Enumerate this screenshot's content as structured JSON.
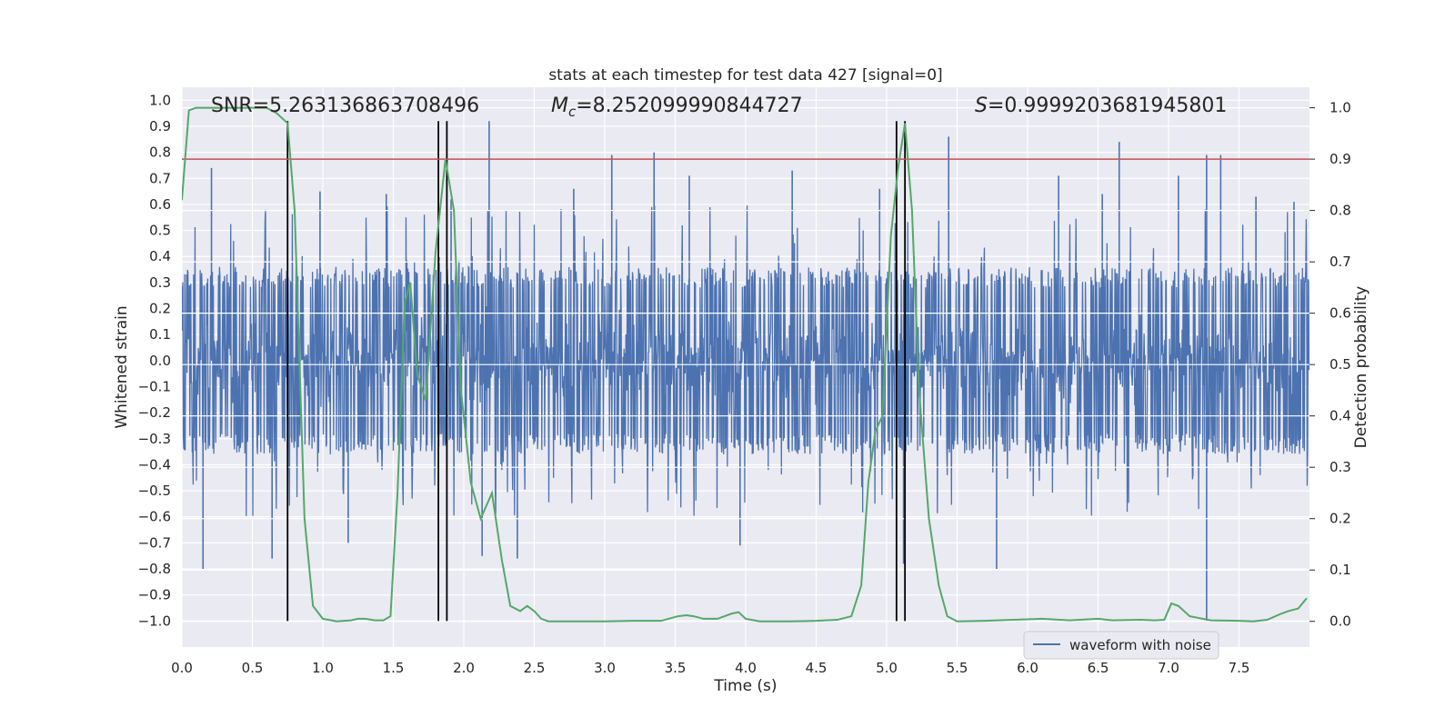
{
  "chart_data": {
    "type": "line",
    "title": "stats at each timestep for test data 427 [signal=0]",
    "xlabel": "Time (s)",
    "ylabel_left": "Whitened strain",
    "ylabel_right": "Detection probability",
    "xlim": [
      0,
      8
    ],
    "ylim_left": [
      -1.1,
      1.05
    ],
    "ylim_right": [
      -0.05,
      1.04
    ],
    "grid": true,
    "x_ticks": [
      0.0,
      0.5,
      1.0,
      1.5,
      2.0,
      2.5,
      3.0,
      3.5,
      4.0,
      4.5,
      5.0,
      5.5,
      6.0,
      6.5,
      7.0,
      7.5
    ],
    "x_tick_labels": [
      "0.0",
      "0.5",
      "1.0",
      "1.5",
      "2.0",
      "2.5",
      "3.0",
      "3.5",
      "4.0",
      "4.5",
      "5.0",
      "5.5",
      "6.0",
      "6.5",
      "7.0",
      "7.5"
    ],
    "y_left_ticks": [
      1.0,
      0.9,
      0.8,
      0.7,
      0.6,
      0.5,
      0.4,
      0.3,
      0.2,
      0.1,
      0.0,
      -0.1,
      -0.2,
      -0.3,
      -0.4,
      -0.5,
      -0.6,
      -0.7,
      -0.8,
      -0.9,
      -1.0
    ],
    "y_left_tick_labels": [
      "1.0",
      "0.9",
      "0.8",
      "0.7",
      "0.6",
      "0.5",
      "0.4",
      "0.3",
      "0.2",
      "0.1",
      "0.0",
      "−0.1",
      "−0.2",
      "−0.3",
      "−0.4",
      "−0.5",
      "−0.6",
      "−0.7",
      "−0.8",
      "−0.9",
      "−1.0"
    ],
    "y_right_ticks": [
      1.0,
      0.9,
      0.8,
      0.7,
      0.6,
      0.5,
      0.4,
      0.3,
      0.2,
      0.1,
      0.0
    ],
    "y_right_tick_labels": [
      "1.0",
      "0.9",
      "0.8",
      "0.7",
      "0.6",
      "0.5",
      "0.4",
      "0.3",
      "0.2",
      "0.1",
      "0.0"
    ],
    "annotations": {
      "snr": "SNR=5.263136863708496",
      "mc_symbol": "M",
      "mc_subscript": "c",
      "mc_value": "=8.252099990844727",
      "s_symbol": "S",
      "s_value": "=0.9999203681945801"
    },
    "threshold": {
      "value": 0.9,
      "axis": "right",
      "color": "#c44e52"
    },
    "vertical_markers": {
      "x": [
        0.75,
        1.82,
        1.88,
        5.07,
        5.13
      ],
      "y_range_left": [
        -1.0,
        0.92
      ],
      "color": "#000000"
    },
    "series": [
      {
        "name": "waveform with noise",
        "axis": "left",
        "color": "#4c72b0",
        "style": "dense noise, amplitude mostly within ±0.4",
        "spikes": [
          {
            "x": 0.15,
            "y": -0.8
          },
          {
            "x": 0.21,
            "y": 0.74
          },
          {
            "x": 0.64,
            "y": -0.76
          },
          {
            "x": 0.98,
            "y": 0.65
          },
          {
            "x": 1.18,
            "y": -0.7
          },
          {
            "x": 1.45,
            "y": 0.64
          },
          {
            "x": 1.91,
            "y": 0.62
          },
          {
            "x": 2.13,
            "y": -0.75
          },
          {
            "x": 2.18,
            "y": 0.92
          },
          {
            "x": 2.38,
            "y": -0.76
          },
          {
            "x": 2.78,
            "y": 0.66
          },
          {
            "x": 3.05,
            "y": 0.79
          },
          {
            "x": 3.35,
            "y": 0.8
          },
          {
            "x": 3.6,
            "y": 0.71
          },
          {
            "x": 3.96,
            "y": -0.71
          },
          {
            "x": 4.33,
            "y": 0.73
          },
          {
            "x": 4.95,
            "y": 0.66
          },
          {
            "x": 5.12,
            "y": -0.78
          },
          {
            "x": 5.44,
            "y": 0.86
          },
          {
            "x": 5.78,
            "y": -0.8
          },
          {
            "x": 6.22,
            "y": 0.71
          },
          {
            "x": 6.53,
            "y": 0.64
          },
          {
            "x": 6.65,
            "y": 0.84
          },
          {
            "x": 7.07,
            "y": 0.71
          },
          {
            "x": 7.27,
            "y": 0.79
          },
          {
            "x": 7.27,
            "y": -1.0
          },
          {
            "x": 7.37,
            "y": 0.79
          },
          {
            "x": 7.62,
            "y": 0.63
          },
          {
            "x": 7.89,
            "y": 0.61
          }
        ]
      },
      {
        "name": "",
        "axis": "right",
        "color": "#55a868",
        "x": [
          0.0,
          0.05,
          0.1,
          0.2,
          0.3,
          0.4,
          0.5,
          0.6,
          0.67,
          0.75,
          0.8,
          0.87,
          0.93,
          1.0,
          1.1,
          1.2,
          1.25,
          1.3,
          1.37,
          1.43,
          1.48,
          1.53,
          1.58,
          1.62,
          1.67,
          1.73,
          1.8,
          1.87,
          1.93,
          1.98,
          2.05,
          2.12,
          2.2,
          2.27,
          2.33,
          2.4,
          2.45,
          2.5,
          2.55,
          2.6,
          2.7,
          3.0,
          3.2,
          3.4,
          3.52,
          3.58,
          3.63,
          3.7,
          3.8,
          3.9,
          3.95,
          4.0,
          4.1,
          4.3,
          4.5,
          4.65,
          4.75,
          4.82,
          4.87,
          4.92,
          4.97,
          5.03,
          5.08,
          5.13,
          5.18,
          5.23,
          5.3,
          5.37,
          5.43,
          5.5,
          5.7,
          5.9,
          6.1,
          6.3,
          6.5,
          6.6,
          6.8,
          6.9,
          6.97,
          7.02,
          7.07,
          7.15,
          7.3,
          7.5,
          7.6,
          7.7,
          7.8,
          7.85,
          7.92,
          7.98
        ],
        "y": [
          0.82,
          0.995,
          1.0,
          1.0,
          1.0,
          1.0,
          1.0,
          1.0,
          0.99,
          0.97,
          0.8,
          0.2,
          0.03,
          0.005,
          0.0,
          0.002,
          0.005,
          0.005,
          0.002,
          0.002,
          0.01,
          0.25,
          0.62,
          0.66,
          0.48,
          0.43,
          0.72,
          0.9,
          0.8,
          0.45,
          0.27,
          0.2,
          0.25,
          0.12,
          0.03,
          0.02,
          0.03,
          0.02,
          0.005,
          0.0,
          0.0,
          0.0,
          0.001,
          0.001,
          0.01,
          0.012,
          0.01,
          0.005,
          0.005,
          0.015,
          0.018,
          0.005,
          0.0,
          0.0,
          0.001,
          0.003,
          0.01,
          0.07,
          0.27,
          0.37,
          0.4,
          0.75,
          0.88,
          0.97,
          0.8,
          0.45,
          0.2,
          0.07,
          0.01,
          0.0,
          0.001,
          0.003,
          0.005,
          0.002,
          0.005,
          0.002,
          0.003,
          0.002,
          0.003,
          0.035,
          0.03,
          0.01,
          0.002,
          0.001,
          0.0,
          0.003,
          0.015,
          0.02,
          0.025,
          0.045
        ]
      }
    ],
    "legend": {
      "placement": "lower-right",
      "entries": [
        "waveform with noise"
      ]
    }
  }
}
